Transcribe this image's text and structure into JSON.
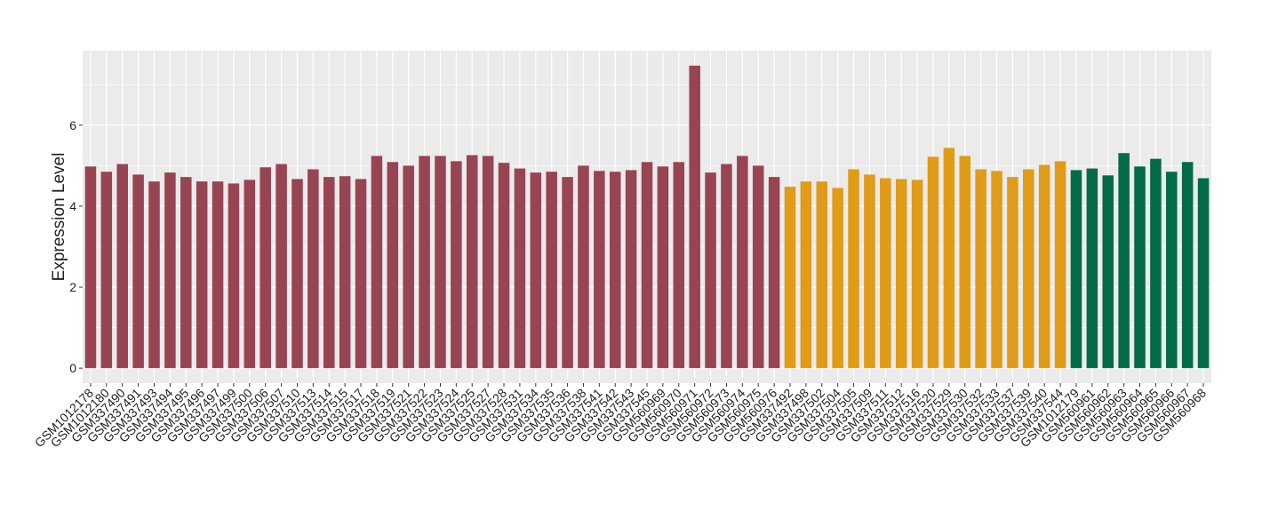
{
  "chart_data": {
    "type": "bar",
    "y_label": "Expression Level",
    "ylim": [
      -0.37,
      7.84
    ],
    "yticks": [
      0,
      2,
      4,
      6
    ],
    "minor_yticks": [
      1,
      3,
      5,
      7
    ],
    "grid": true,
    "series": [
      {
        "color": "#984452",
        "categories": [
          "GSM1012178",
          "GSM1012180",
          "GSM337490",
          "GSM337491",
          "GSM337493",
          "GSM337494",
          "GSM337495",
          "GSM337496",
          "GSM337497",
          "GSM337499",
          "GSM337500",
          "GSM337506",
          "GSM337507",
          "GSM337510",
          "GSM337513",
          "GSM337514",
          "GSM337515",
          "GSM337517",
          "GSM337518",
          "GSM337519",
          "GSM337521",
          "GSM337522",
          "GSM337523",
          "GSM337524",
          "GSM337525",
          "GSM337527",
          "GSM337528",
          "GSM337531",
          "GSM337534",
          "GSM337535",
          "GSM337536",
          "GSM337538",
          "GSM337541",
          "GSM337542",
          "GSM337543",
          "GSM337545",
          "GSM560969",
          "GSM560970",
          "GSM560971",
          "GSM560972",
          "GSM560973",
          "GSM560974",
          "GSM560975",
          "GSM560976"
        ],
        "values": [
          4.98,
          4.85,
          5.04,
          4.78,
          4.61,
          4.83,
          4.72,
          4.61,
          4.61,
          4.56,
          4.65,
          4.96,
          5.04,
          4.67,
          4.91,
          4.72,
          4.74,
          4.67,
          5.24,
          5.09,
          5.0,
          5.24,
          5.24,
          5.11,
          5.26,
          5.24,
          5.07,
          4.93,
          4.83,
          4.85,
          4.72,
          5.0,
          4.87,
          4.85,
          4.89,
          5.09,
          4.98,
          5.09,
          7.47,
          4.83,
          5.04,
          5.24,
          5.0,
          4.72
        ]
      },
      {
        "color": "#E09B18",
        "categories": [
          "GSM337492",
          "GSM337498",
          "GSM337502",
          "GSM337504",
          "GSM337505",
          "GSM337509",
          "GSM337511",
          "GSM337512",
          "GSM337516",
          "GSM337520",
          "GSM337529",
          "GSM337530",
          "GSM337532",
          "GSM337533",
          "GSM337537",
          "GSM337539",
          "GSM337540",
          "GSM337544"
        ],
        "values": [
          4.48,
          4.61,
          4.61,
          4.45,
          4.91,
          4.78,
          4.69,
          4.67,
          4.65,
          5.22,
          5.44,
          5.24,
          4.91,
          4.87,
          4.72,
          4.91,
          5.02,
          5.11
        ]
      },
      {
        "color": "#036B45",
        "categories": [
          "GSM1012179",
          "GSM560961",
          "GSM560962",
          "GSM560963",
          "GSM560964",
          "GSM560965",
          "GSM560966",
          "GSM560967",
          "GSM560968"
        ],
        "values": [
          4.89,
          4.93,
          4.76,
          5.31,
          4.98,
          5.17,
          4.85,
          5.09,
          4.69
        ]
      }
    ]
  }
}
